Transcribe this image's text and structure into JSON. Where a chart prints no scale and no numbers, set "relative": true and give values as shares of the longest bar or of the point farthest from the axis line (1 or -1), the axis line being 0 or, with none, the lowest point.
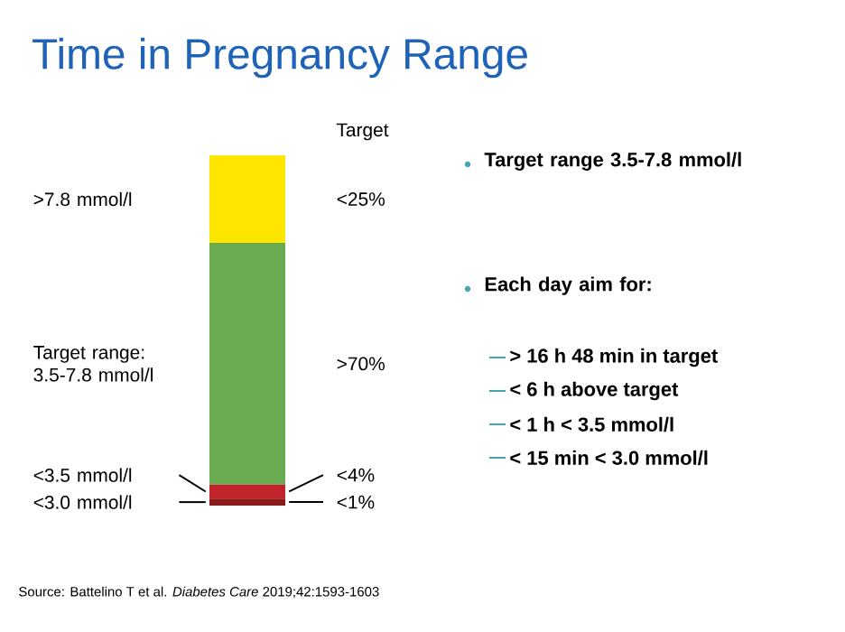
{
  "chart_data": {
    "type": "bar",
    "title": "Time in Pregnancy Range",
    "stacked": true,
    "relative": true,
    "categories": [
      null
    ],
    "series": [
      {
        "color": "#8b1a1a",
        "values": [
          0.02
        ]
      },
      {
        "color": "#c3232b",
        "values": [
          0.04
        ]
      },
      {
        "color": "#6aaa50",
        "values": [
          0.69
        ]
      },
      {
        "color": "#ffe600",
        "values": [
          0.25
        ]
      }
    ],
    "annotations": [
      "<3.0 mmol/l",
      "<3.5 mmol/l",
      "Target range: 3.5-7.8 mmol/l",
      ">7.8 mmol/l",
      "<1%",
      "<4%",
      ">70%",
      "<25%",
      "Target",
      "Target range 3.5-7.8 mmol/l",
      "Each day aim for:",
      "> 16 h 48 min in target",
      "< 6 h above target",
      "< 1 h < 3.5 mmol/l",
      "< 15 min < 3.0 mmol/l",
      "Source: Battelino T et al. *Diabetes Care* 2019;42:1593-1603"
    ]
  }
}
